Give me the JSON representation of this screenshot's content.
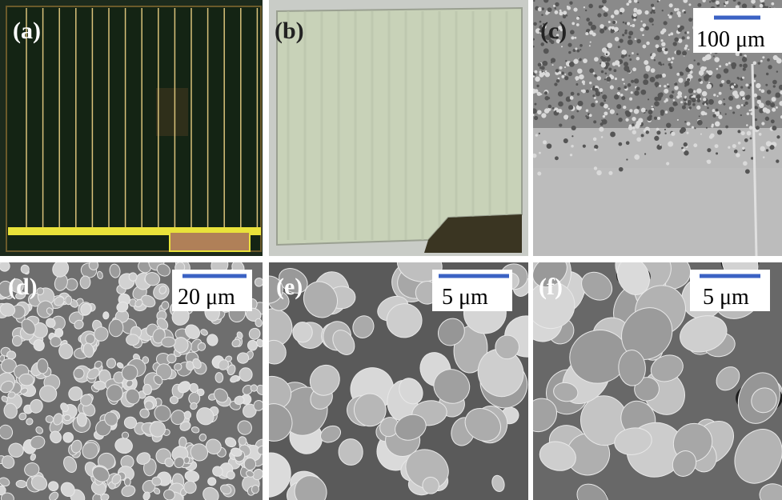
{
  "panels": [
    {
      "label": "(a)"
    },
    {
      "label": "(b)"
    },
    {
      "label": "(c)",
      "scale_bar": "100 μm"
    },
    {
      "label": "(d)",
      "scale_bar": "20 μm"
    },
    {
      "label": "(e)",
      "scale_bar": "5 μm"
    },
    {
      "label": "(f)",
      "scale_bar": "5 μm"
    }
  ]
}
